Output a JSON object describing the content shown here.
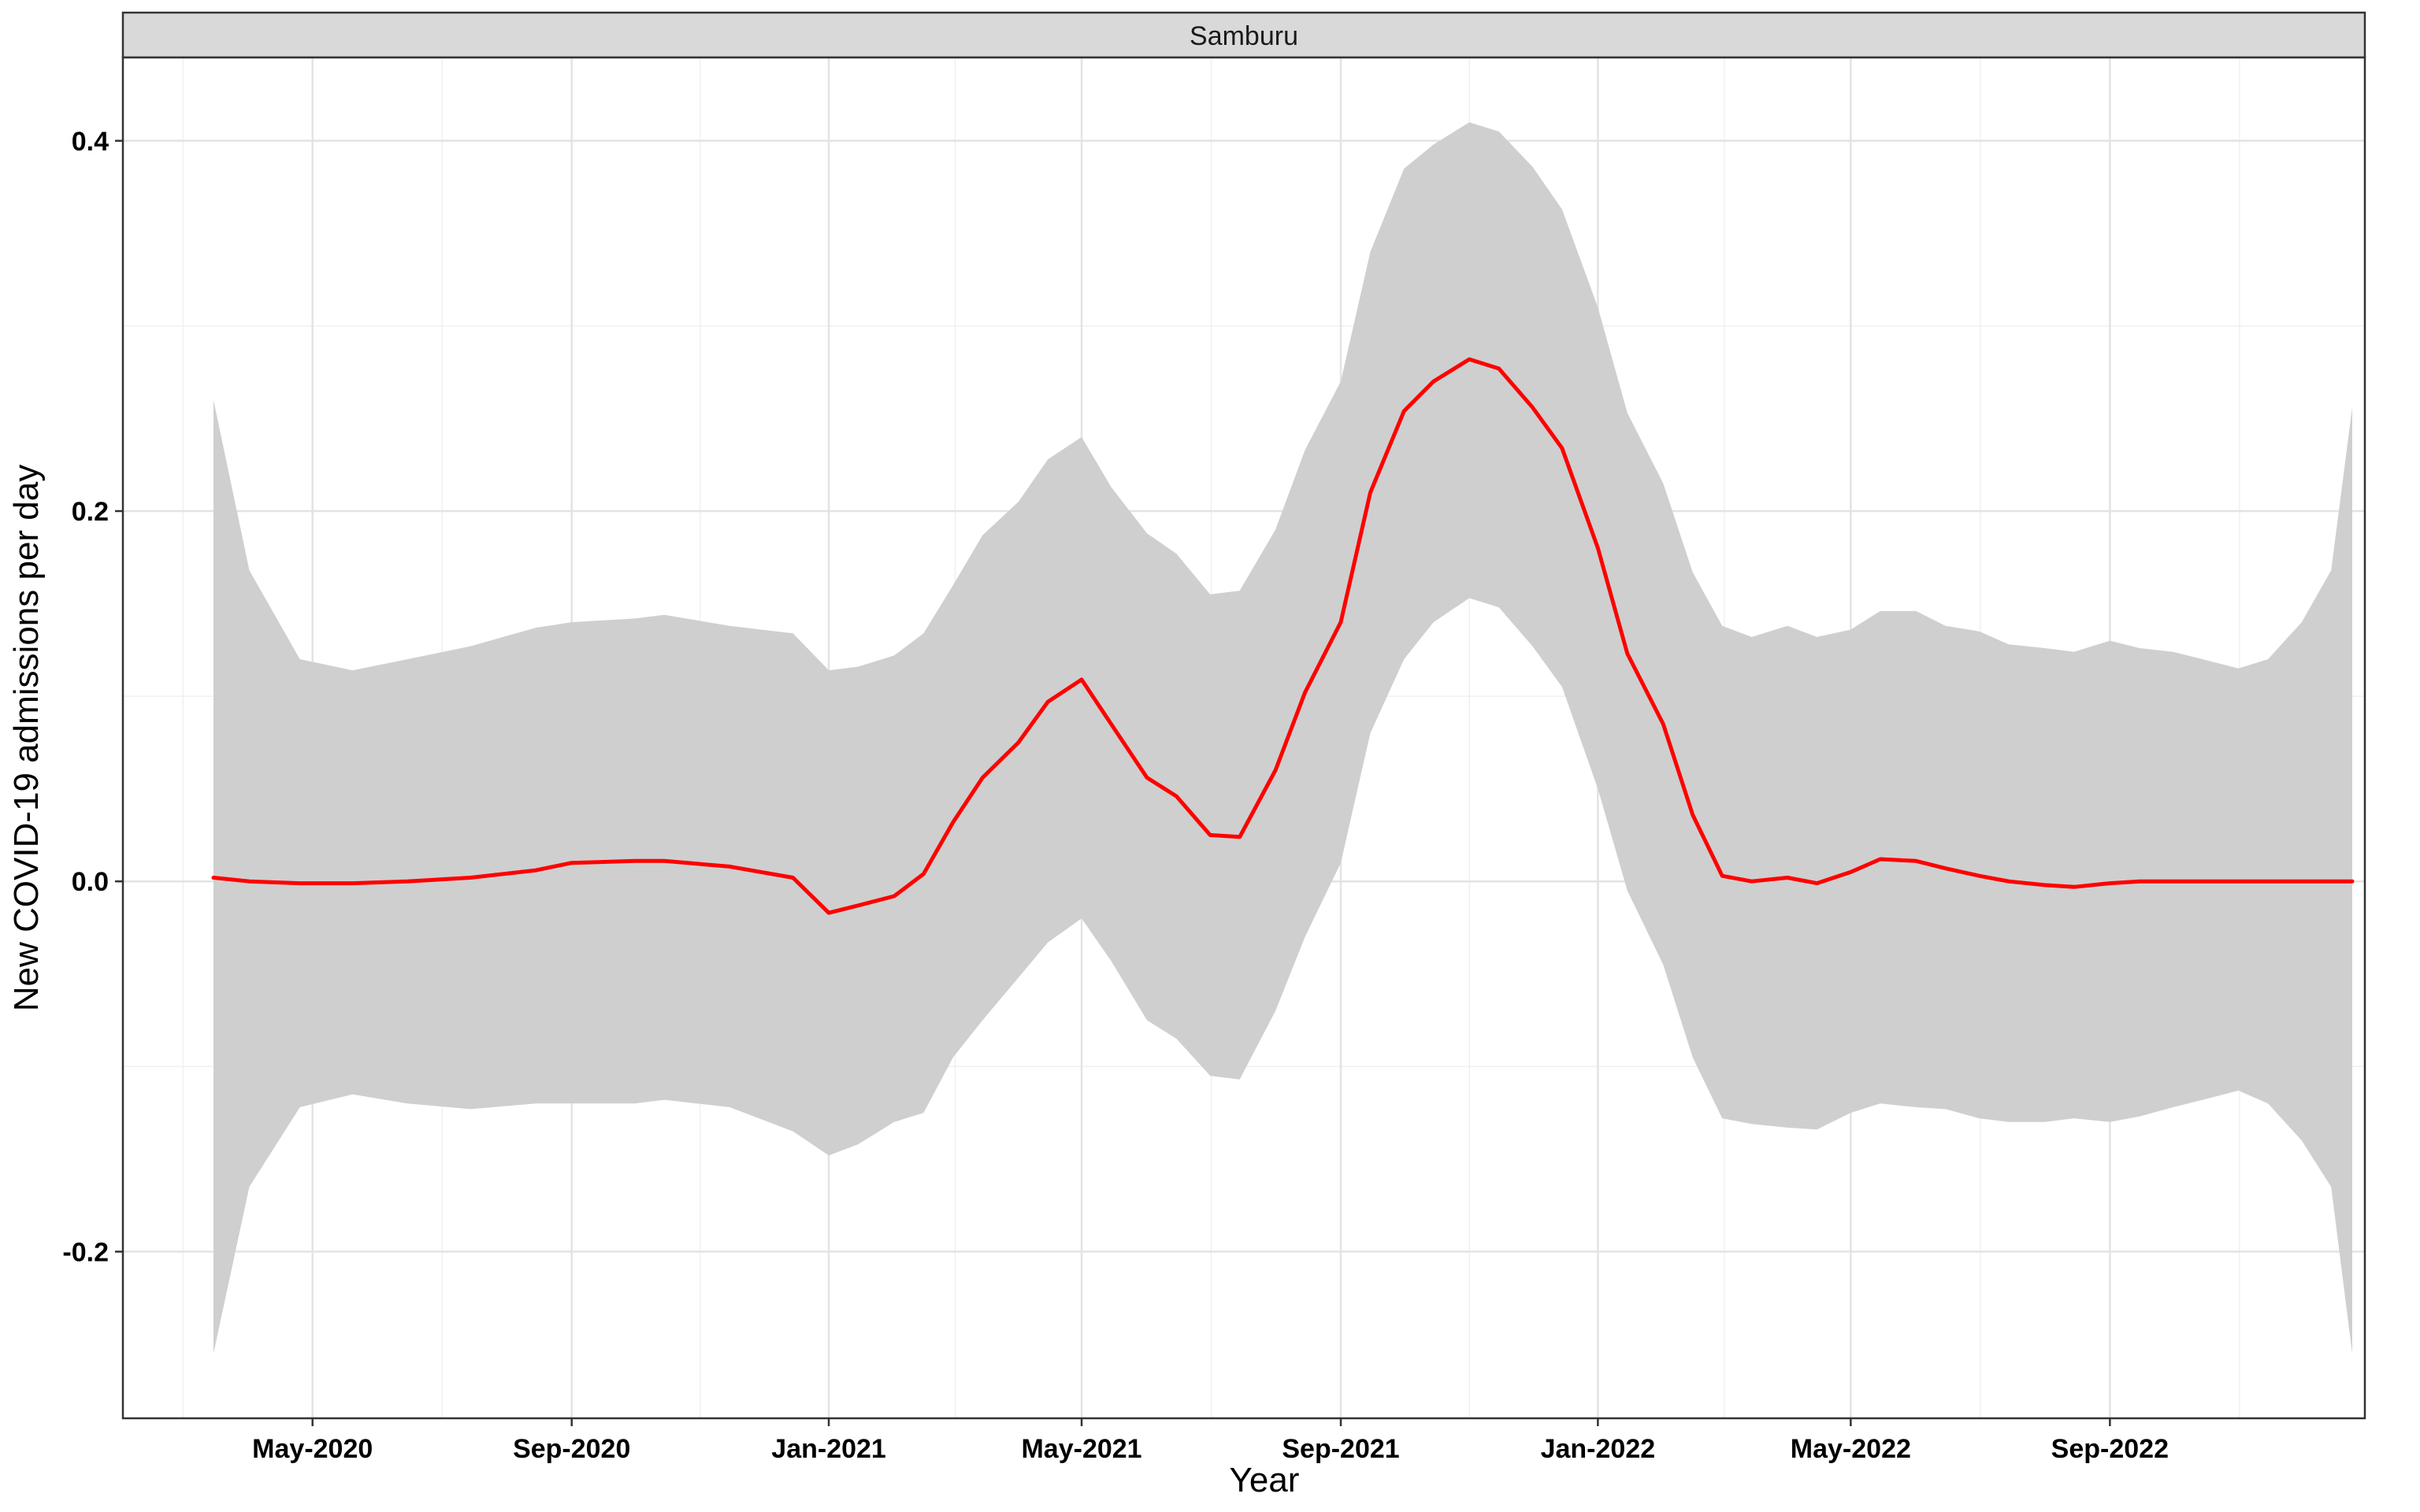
{
  "chart_data": {
    "type": "line",
    "facet": "Samburu",
    "xlabel": "Year",
    "ylabel": "New COVID-19 admissions per day",
    "x_ticks": [
      "2020-05-01",
      "2020-09-01",
      "2021-01-01",
      "2021-05-01",
      "2021-09-01",
      "2022-01-01",
      "2022-05-01",
      "2022-09-01"
    ],
    "x_tick_labels": [
      "May-2020",
      "Sep-2020",
      "Jan-2021",
      "May-2021",
      "Sep-2021",
      "Jan-2022",
      "May-2022",
      "Sep-2022"
    ],
    "xlim": [
      "2020-02-01",
      "2022-12-31"
    ],
    "y_ticks": [
      -0.2,
      0.0,
      0.2,
      0.4
    ],
    "y_tick_labels": [
      "-0.2",
      "0.0",
      "0.2",
      "0.4"
    ],
    "ylim": [
      -0.29,
      0.445
    ],
    "grid": true,
    "series": [
      {
        "color": "#ff0000",
        "band_color": "#cfcfcf",
        "points": [
          {
            "x": "2020-03-15",
            "y": 0.002,
            "lo": -0.255,
            "hi": 0.26
          },
          {
            "x": "2020-04-01",
            "y": 0.0,
            "lo": -0.165,
            "hi": 0.168
          },
          {
            "x": "2020-04-25",
            "y": -0.001,
            "lo": -0.122,
            "hi": 0.12
          },
          {
            "x": "2020-05-20",
            "y": -0.001,
            "lo": -0.115,
            "hi": 0.114
          },
          {
            "x": "2020-06-15",
            "y": 0.0,
            "lo": -0.12,
            "hi": 0.12
          },
          {
            "x": "2020-07-15",
            "y": 0.002,
            "lo": -0.123,
            "hi": 0.127
          },
          {
            "x": "2020-08-15",
            "y": 0.006,
            "lo": -0.12,
            "hi": 0.137
          },
          {
            "x": "2020-09-01",
            "y": 0.01,
            "lo": -0.12,
            "hi": 0.14
          },
          {
            "x": "2020-10-01",
            "y": 0.011,
            "lo": -0.12,
            "hi": 0.142
          },
          {
            "x": "2020-10-15",
            "y": 0.011,
            "lo": -0.118,
            "hi": 0.144
          },
          {
            "x": "2020-11-15",
            "y": 0.008,
            "lo": -0.122,
            "hi": 0.138
          },
          {
            "x": "2020-12-15",
            "y": 0.002,
            "lo": -0.135,
            "hi": 0.134
          },
          {
            "x": "2021-01-01",
            "y": -0.017,
            "lo": -0.148,
            "hi": 0.114
          },
          {
            "x": "2021-01-15",
            "y": -0.013,
            "lo": -0.142,
            "hi": 0.116
          },
          {
            "x": "2021-02-01",
            "y": -0.008,
            "lo": -0.13,
            "hi": 0.122
          },
          {
            "x": "2021-02-15",
            "y": 0.004,
            "lo": -0.125,
            "hi": 0.134
          },
          {
            "x": "2021-03-01",
            "y": 0.032,
            "lo": -0.095,
            "hi": 0.16
          },
          {
            "x": "2021-03-15",
            "y": 0.056,
            "lo": -0.075,
            "hi": 0.187
          },
          {
            "x": "2021-04-01",
            "y": 0.075,
            "lo": -0.052,
            "hi": 0.205
          },
          {
            "x": "2021-04-15",
            "y": 0.097,
            "lo": -0.033,
            "hi": 0.228
          },
          {
            "x": "2021-05-01",
            "y": 0.109,
            "lo": -0.02,
            "hi": 0.24
          },
          {
            "x": "2021-05-15",
            "y": 0.085,
            "lo": -0.043,
            "hi": 0.213
          },
          {
            "x": "2021-06-01",
            "y": 0.056,
            "lo": -0.075,
            "hi": 0.188
          },
          {
            "x": "2021-06-15",
            "y": 0.046,
            "lo": -0.085,
            "hi": 0.177
          },
          {
            "x": "2021-07-01",
            "y": 0.025,
            "lo": -0.105,
            "hi": 0.155
          },
          {
            "x": "2021-07-15",
            "y": 0.024,
            "lo": -0.107,
            "hi": 0.157
          },
          {
            "x": "2021-08-01",
            "y": 0.06,
            "lo": -0.07,
            "hi": 0.19
          },
          {
            "x": "2021-08-15",
            "y": 0.102,
            "lo": -0.03,
            "hi": 0.233
          },
          {
            "x": "2021-09-01",
            "y": 0.14,
            "lo": 0.01,
            "hi": 0.27
          },
          {
            "x": "2021-09-15",
            "y": 0.21,
            "lo": 0.08,
            "hi": 0.34
          },
          {
            "x": "2021-10-01",
            "y": 0.254,
            "lo": 0.12,
            "hi": 0.385
          },
          {
            "x": "2021-10-15",
            "y": 0.27,
            "lo": 0.14,
            "hi": 0.398
          },
          {
            "x": "2021-11-01",
            "y": 0.282,
            "lo": 0.153,
            "hi": 0.41
          },
          {
            "x": "2021-11-15",
            "y": 0.277,
            "lo": 0.148,
            "hi": 0.405
          },
          {
            "x": "2021-12-01",
            "y": 0.256,
            "lo": 0.127,
            "hi": 0.386
          },
          {
            "x": "2021-12-15",
            "y": 0.234,
            "lo": 0.105,
            "hi": 0.363
          },
          {
            "x": "2022-01-01",
            "y": 0.18,
            "lo": 0.05,
            "hi": 0.31
          },
          {
            "x": "2022-01-15",
            "y": 0.123,
            "lo": -0.005,
            "hi": 0.253
          },
          {
            "x": "2022-02-01",
            "y": 0.085,
            "lo": -0.045,
            "hi": 0.215
          },
          {
            "x": "2022-02-15",
            "y": 0.036,
            "lo": -0.095,
            "hi": 0.167
          },
          {
            "x": "2022-03-01",
            "y": 0.003,
            "lo": -0.128,
            "hi": 0.138
          },
          {
            "x": "2022-03-15",
            "y": 0.0,
            "lo": -0.131,
            "hi": 0.132
          },
          {
            "x": "2022-04-01",
            "y": 0.002,
            "lo": -0.133,
            "hi": 0.138
          },
          {
            "x": "2022-04-15",
            "y": -0.001,
            "lo": -0.134,
            "hi": 0.132
          },
          {
            "x": "2022-05-01",
            "y": 0.005,
            "lo": -0.125,
            "hi": 0.136
          },
          {
            "x": "2022-05-15",
            "y": 0.012,
            "lo": -0.12,
            "hi": 0.146
          },
          {
            "x": "2022-06-01",
            "y": 0.011,
            "lo": -0.122,
            "hi": 0.146
          },
          {
            "x": "2022-06-15",
            "y": 0.007,
            "lo": -0.123,
            "hi": 0.138
          },
          {
            "x": "2022-07-01",
            "y": 0.003,
            "lo": -0.128,
            "hi": 0.135
          },
          {
            "x": "2022-07-15",
            "y": 0.0,
            "lo": -0.13,
            "hi": 0.128
          },
          {
            "x": "2022-08-01",
            "y": -0.002,
            "lo": -0.13,
            "hi": 0.126
          },
          {
            "x": "2022-08-15",
            "y": -0.003,
            "lo": -0.128,
            "hi": 0.124
          },
          {
            "x": "2022-09-01",
            "y": -0.001,
            "lo": -0.13,
            "hi": 0.13
          },
          {
            "x": "2022-09-15",
            "y": 0.0,
            "lo": -0.127,
            "hi": 0.126
          },
          {
            "x": "2022-10-01",
            "y": 0.0,
            "lo": -0.122,
            "hi": 0.124
          },
          {
            "x": "2022-10-15",
            "y": 0.0,
            "lo": -0.118,
            "hi": 0.12
          },
          {
            "x": "2022-11-01",
            "y": 0.0,
            "lo": -0.113,
            "hi": 0.115
          },
          {
            "x": "2022-11-15",
            "y": 0.0,
            "lo": -0.12,
            "hi": 0.12
          },
          {
            "x": "2022-12-01",
            "y": 0.0,
            "lo": -0.14,
            "hi": 0.14
          },
          {
            "x": "2022-12-15",
            "y": 0.0,
            "lo": -0.165,
            "hi": 0.168
          },
          {
            "x": "2022-12-25",
            "y": 0.0,
            "lo": -0.255,
            "hi": 0.256
          }
        ]
      }
    ]
  }
}
